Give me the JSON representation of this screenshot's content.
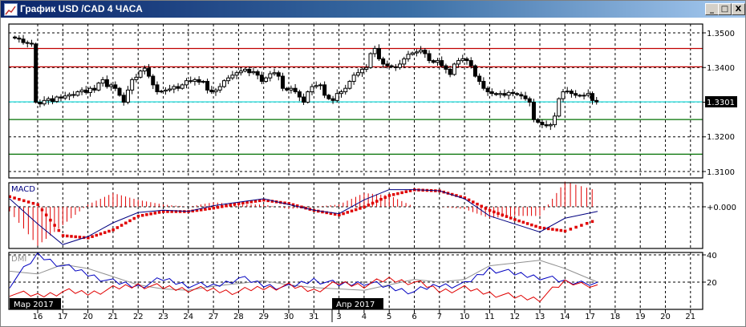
{
  "window": {
    "title": "График USD /CAD  4 ЧАСА",
    "minimize_glyph": "_",
    "maximize_glyph": "□",
    "close_glyph": "X"
  },
  "colors": {
    "title_bar": "#0a246a",
    "resistance": "#c00000",
    "support": "#007000",
    "current_price_line": "#40e0e0",
    "macd_line": "#000080",
    "macd_signal": "#e00000",
    "dmi_plus": "#0000c0",
    "dmi_minus": "#e00000",
    "adx": "#909090"
  },
  "chart_data": [
    {
      "type": "candlestick",
      "symbol": "USD /CAD",
      "timeframe": "4 ЧАСА",
      "y_ticks": [
        "1.3500",
        "1.3400",
        "1.3301",
        "1.3200",
        "1.3100"
      ],
      "ylim": [
        1.3075,
        1.3525
      ],
      "current_price": 1.3301,
      "current_price_label": "1.3301",
      "levels": {
        "resistance": [
          1.3455,
          1.3402
        ],
        "support": [
          1.325,
          1.315
        ]
      },
      "grid": true,
      "closes": [
        1.3485,
        1.3482,
        1.3472,
        1.347,
        1.3468,
        1.33,
        1.3295,
        1.3305,
        1.331,
        1.3302,
        1.3315,
        1.3312,
        1.3318,
        1.3322,
        1.332,
        1.333,
        1.3335,
        1.3328,
        1.334,
        1.3335,
        1.3355,
        1.3365,
        1.3345,
        1.335,
        1.334,
        1.332,
        1.33,
        1.3335,
        1.3365,
        1.3372,
        1.339,
        1.3398,
        1.3375,
        1.335,
        1.333,
        1.3332,
        1.3335,
        1.3338,
        1.3345,
        1.334,
        1.335,
        1.3362,
        1.336,
        1.3365,
        1.3358,
        1.336,
        1.3335,
        1.333,
        1.3335,
        1.3345,
        1.3362,
        1.337,
        1.3378,
        1.3385,
        1.339,
        1.3395,
        1.3385,
        1.3388,
        1.3378,
        1.336,
        1.337,
        1.3382,
        1.3385,
        1.3375,
        1.334,
        1.3335,
        1.334,
        1.333,
        1.3315,
        1.33,
        1.333,
        1.3345,
        1.3348,
        1.335,
        1.332,
        1.331,
        1.3305,
        1.3325,
        1.333,
        1.334,
        1.336,
        1.3378,
        1.3385,
        1.3395,
        1.34,
        1.344,
        1.3455,
        1.3425,
        1.341,
        1.3405,
        1.3402,
        1.34,
        1.341,
        1.3425,
        1.3438,
        1.3442,
        1.3445,
        1.345,
        1.344,
        1.342,
        1.3415,
        1.342,
        1.3405,
        1.3395,
        1.338,
        1.341,
        1.342,
        1.3425,
        1.342,
        1.3405,
        1.3375,
        1.336,
        1.334,
        1.333,
        1.3325,
        1.3322,
        1.3325,
        1.332,
        1.3328,
        1.3325,
        1.3322,
        1.3318,
        1.331,
        1.33,
        1.325,
        1.3242,
        1.3235,
        1.3232,
        1.3235,
        1.326,
        1.331,
        1.333,
        1.3332,
        1.3325,
        1.332,
        1.3318,
        1.332,
        1.3325,
        1.3305,
        1.3301
      ]
    },
    {
      "type": "line",
      "title": "MACD",
      "y_ticks": [
        "+0.000"
      ],
      "series": [
        {
          "role": "macd",
          "style": "line",
          "values": [
            0.0007,
            -0.0015,
            -0.0033,
            -0.0026,
            -0.0014,
            -0.0005,
            -0.0003,
            -0.0004,
            0.0001,
            0.0004,
            0.0007,
            0.0002,
            -0.0003,
            -0.0006,
            0.0006,
            0.0015,
            0.0015,
            0.0014,
            0.0007,
            -0.0008,
            -0.0015,
            -0.0022,
            -0.001,
            -0.0004
          ]
        },
        {
          "role": "signal",
          "style": "dots",
          "values": [
            0.0009,
            0.0002,
            -0.0025,
            -0.0027,
            -0.002,
            -0.0008,
            -0.0004,
            -0.0004,
            -0.0001,
            0.0003,
            0.0006,
            0.0003,
            -0.0003,
            -0.0007,
            0.0,
            0.001,
            0.0015,
            0.0014,
            0.0008,
            -0.0003,
            -0.0011,
            -0.0018,
            -0.0021,
            -0.0011
          ]
        }
      ],
      "histogram": "macd-signal"
    },
    {
      "type": "line",
      "title": "DMI",
      "y_ticks": [
        "40",
        "20"
      ],
      "ylim": [
        0,
        42
      ],
      "series": [
        {
          "role": "adx",
          "values": [
            28,
            26,
            33,
            30,
            24,
            18,
            15,
            14,
            17,
            19,
            21,
            18,
            16,
            15,
            14,
            18,
            22,
            20,
            22,
            32,
            34,
            36,
            30,
            20
          ]
        },
        {
          "role": "plus_di",
          "values": [
            18,
            40,
            32,
            26,
            20,
            17,
            22,
            18,
            17,
            23,
            18,
            16,
            22,
            18,
            20,
            16,
            13,
            18,
            18,
            30,
            26,
            24,
            20,
            20
          ]
        },
        {
          "role": "minus_di",
          "values": [
            12,
            10,
            13,
            12,
            15,
            18,
            16,
            15,
            14,
            13,
            16,
            17,
            14,
            19,
            18,
            22,
            20,
            14,
            15,
            12,
            9,
            8,
            20,
            18
          ]
        }
      ]
    }
  ],
  "x_axis": {
    "day_labels": [
      "16",
      "17",
      "20",
      "21",
      "22",
      "23",
      "24",
      "27",
      "28",
      "29",
      "30",
      "31",
      "3",
      "4",
      "5",
      "6",
      "7",
      "10",
      "11",
      "12",
      "13",
      "14",
      "17",
      "18",
      "19",
      "20",
      "21"
    ],
    "month_labels": [
      {
        "text": "Мар 2017",
        "at_day_index": -1
      },
      {
        "text": "Апр 2017",
        "at_day_index": 12
      }
    ]
  }
}
